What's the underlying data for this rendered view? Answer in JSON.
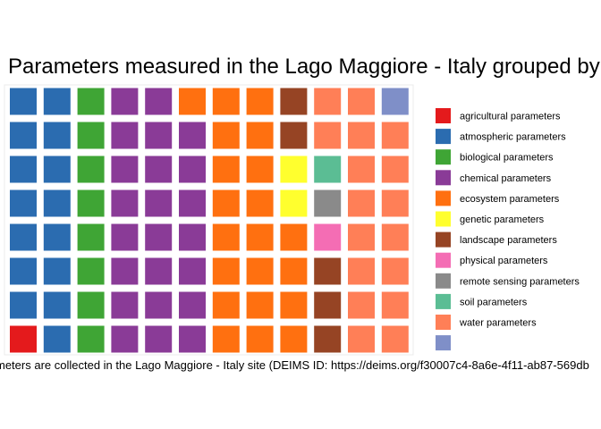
{
  "chart_data": {
    "type": "waffle",
    "title": "Parameters measured in the Lago Maggiore - Italy grouped by",
    "caption": "meters are collected in the Lago Maggiore - Italy site (DEIMS ID: https://deims.org/f30007c4-8a6e-4f11-ab87-569db",
    "rows": 8,
    "columns": 12,
    "fill_order": "column-wise, bottom to top, left to right",
    "legend_position": "right",
    "categories": [
      {
        "name": "agricultural parameters",
        "count": 1,
        "color": "#E41A1C"
      },
      {
        "name": "atmospheric parameters",
        "count": 15,
        "color": "#2B6CB0"
      },
      {
        "name": "biological parameters",
        "count": 8,
        "color": "#3FA535"
      },
      {
        "name": "chemical parameters",
        "count": 23,
        "color": "#8A3B97"
      },
      {
        "name": "ecosystem parameters",
        "count": 21,
        "color": "#FF7010"
      },
      {
        "name": "genetic parameters",
        "count": 2,
        "color": "#FFFF2E"
      },
      {
        "name": "landscape parameters",
        "count": 5,
        "color": "#964424"
      },
      {
        "name": "physical parameters",
        "count": 1,
        "color": "#F46DB4"
      },
      {
        "name": "remote sensing parameters",
        "count": 1,
        "color": "#8A8A8A"
      },
      {
        "name": "soil parameters",
        "count": 1,
        "color": "#5BBD94"
      },
      {
        "name": "water parameters",
        "count": 17,
        "color": "#FF7F57"
      },
      {
        "name": "",
        "count": 1,
        "color": "#7F8FC8"
      }
    ]
  }
}
